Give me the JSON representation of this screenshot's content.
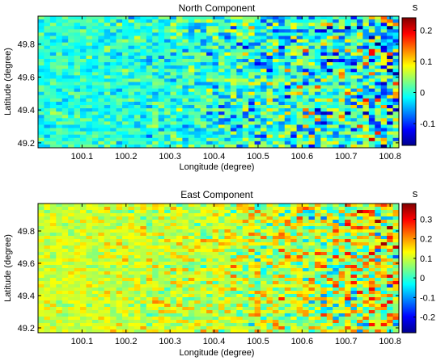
{
  "chart_data": [
    {
      "type": "heatmap",
      "title": "North Component",
      "xlabel": "Longitude (degree)",
      "ylabel": "Latitude (degree)",
      "xlim": [
        100.0,
        100.82
      ],
      "ylim": [
        49.17,
        49.97
      ],
      "xticks": [
        100.1,
        100.2,
        100.3,
        100.4,
        100.5,
        100.6,
        100.7,
        100.8
      ],
      "xtick_labels": [
        "100.1",
        "100.2",
        "100.3",
        "100.4",
        "100.5",
        "100.6",
        "100.7",
        "100.8"
      ],
      "yticks": [
        49.2,
        49.4,
        49.6,
        49.8
      ],
      "ytick_labels": [
        "49.2",
        "49.4",
        "49.6",
        "49.8"
      ],
      "colorbar": {
        "unit": "s",
        "range": [
          -0.17,
          0.24
        ],
        "ticks": [
          -0.1,
          0,
          0.1,
          0.2
        ],
        "tick_labels": [
          "-0.1",
          "0",
          "0.1",
          "0.2"
        ],
        "colormap": "jet"
      },
      "grid_size": [
        60,
        40
      ],
      "field": {
        "description_pattern": "values near 0 in west, increasing variance toward east",
        "base": 0.0,
        "amplitude_west": 0.03,
        "amplitude_east": 0.12
      }
    },
    {
      "type": "heatmap",
      "title": "East Component",
      "xlabel": "Longitude (degree)",
      "ylabel": "Latitude (degree)",
      "xlim": [
        100.0,
        100.82
      ],
      "ylim": [
        49.17,
        49.97
      ],
      "xticks": [
        100.1,
        100.2,
        100.3,
        100.4,
        100.5,
        100.6,
        100.7,
        100.8
      ],
      "xtick_labels": [
        "100.1",
        "100.2",
        "100.3",
        "100.4",
        "100.5",
        "100.6",
        "100.7",
        "100.8"
      ],
      "yticks": [
        49.2,
        49.4,
        49.6,
        49.8
      ],
      "ytick_labels": [
        "49.2",
        "49.4",
        "49.6",
        "49.8"
      ],
      "colorbar": {
        "unit": "s",
        "range": [
          -0.28,
          0.38
        ],
        "ticks": [
          -0.2,
          -0.1,
          0,
          0.1,
          0.2,
          0.3
        ],
        "tick_labels": [
          "-0.2",
          "-0.1",
          "0",
          "0.1",
          "0.2",
          "0.3"
        ],
        "colormap": "jet"
      },
      "grid_size": [
        60,
        40
      ],
      "field": {
        "description_pattern": "values near 0.1 in west, increasing variance toward east",
        "base": 0.1,
        "amplitude_west": 0.04,
        "amplitude_east": 0.16
      }
    }
  ]
}
